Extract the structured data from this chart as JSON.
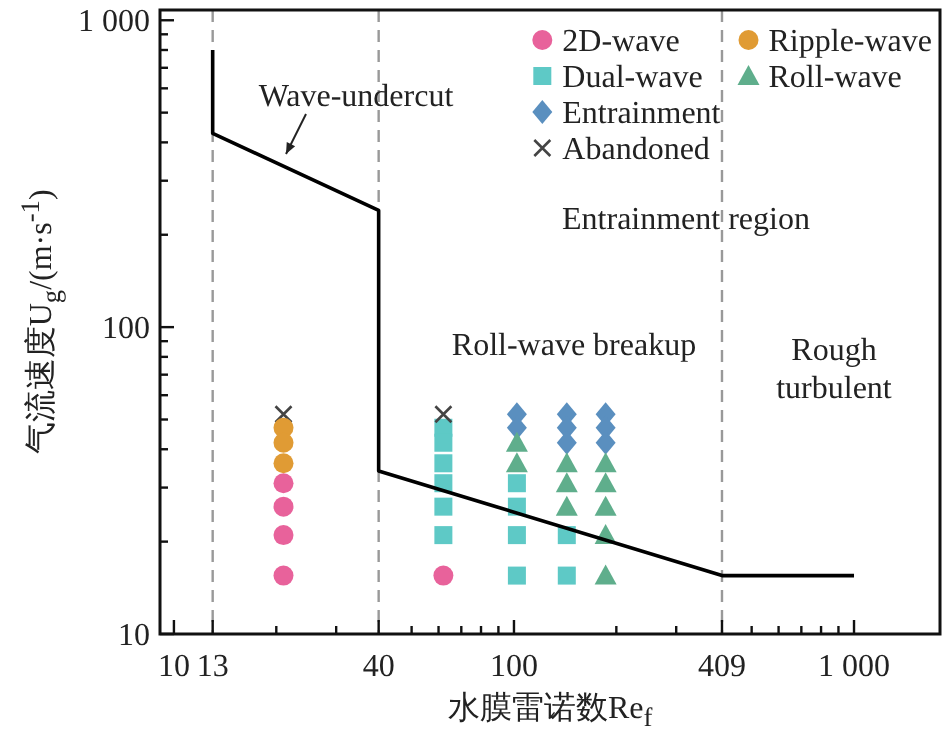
{
  "chart_data": {
    "type": "scatter",
    "xlabel": "水膜雷诺数Re$_{f}$",
    "ylabel": "气流速度U$_{g}$/(m·s$^{-1}$)",
    "log": "xy",
    "xlim": [
      9.1,
      1790
    ],
    "ylim": [
      10,
      1080
    ],
    "xticks": [
      10,
      13,
      {
        "value": 20,
        "label": null
      },
      {
        "value": 30,
        "label": null
      },
      40,
      {
        "value": 50,
        "label": null
      },
      {
        "value": 60,
        "label": null
      },
      {
        "value": 70,
        "label": null
      },
      {
        "value": 80,
        "label": null
      },
      {
        "value": 90,
        "label": null
      },
      100,
      {
        "value": 200,
        "label": null
      },
      {
        "value": 300,
        "label": null
      },
      409,
      {
        "value": 500,
        "label": null
      },
      {
        "value": 600,
        "label": null
      },
      {
        "value": 700,
        "label": null
      },
      {
        "value": 800,
        "label": null
      },
      {
        "value": 900,
        "label": null
      },
      {
        "value": 1000,
        "label": "1 000"
      }
    ],
    "yticks": [
      10,
      {
        "value": 20,
        "label": null
      },
      {
        "value": 30,
        "label": null
      },
      {
        "value": 40,
        "label": null
      },
      {
        "value": 50,
        "label": null
      },
      {
        "value": 60,
        "label": null
      },
      {
        "value": 70,
        "label": null
      },
      {
        "value": 80,
        "label": null
      },
      {
        "value": 90,
        "label": null
      },
      100,
      {
        "value": 200,
        "label": null
      },
      {
        "value": 300,
        "label": null
      },
      {
        "value": 400,
        "label": null
      },
      {
        "value": 500,
        "label": null
      },
      {
        "value": 600,
        "label": null
      },
      {
        "value": 700,
        "label": null
      },
      {
        "value": 800,
        "label": null
      },
      {
        "value": 900,
        "label": null
      },
      {
        "value": 1000,
        "label": "1 000"
      }
    ],
    "legend": "top right",
    "series": [
      {
        "name": "2D-wave",
        "marker": "circle",
        "color": "#e8629b",
        "x": [
          21,
          21,
          21,
          21,
          62
        ],
        "values": [
          31,
          26,
          21,
          15.5,
          15.5
        ]
      },
      {
        "name": "Dual-wave",
        "marker": "square",
        "color": "#5ec9c6",
        "x": [
          62,
          62,
          62,
          62,
          62,
          62,
          102,
          102,
          102,
          102,
          143,
          143
        ],
        "values": [
          47,
          42,
          36,
          31,
          26,
          21,
          31,
          26,
          21,
          15.5,
          21,
          15.5
        ]
      },
      {
        "name": "Entrainment",
        "marker": "diamond",
        "color": "#5a8fbf",
        "x": [
          102,
          102,
          143,
          143,
          143,
          186,
          186,
          186
        ],
        "values": [
          52,
          47,
          52,
          47,
          42,
          52,
          47,
          42
        ]
      },
      {
        "name": "Abandoned",
        "marker": "cross",
        "color": "#444444",
        "x": [
          21,
          62
        ],
        "values": [
          52,
          52
        ]
      },
      {
        "name": "Ripple-wave",
        "marker": "circle",
        "color": "#e09b34",
        "x": [
          21,
          21,
          21
        ],
        "values": [
          47,
          42,
          36
        ]
      },
      {
        "name": "Roll-wave",
        "marker": "triangle",
        "color": "#5fae8c",
        "x": [
          102,
          102,
          143,
          143,
          143,
          186,
          186,
          186,
          186,
          186
        ],
        "values": [
          42,
          36,
          36,
          31,
          26,
          36,
          31,
          26,
          21,
          15.5
        ]
      },
      {
        "type": "line",
        "marker": "none",
        "line_style": "solid",
        "color": "#000000",
        "x": [
          13,
          13,
          40,
          40,
          409,
          1000
        ],
        "values": [
          800,
          428,
          240,
          34,
          15.5,
          15.5
        ]
      }
    ],
    "ref_lines": [
      {
        "axis": "x",
        "value": 13,
        "color": "#999999",
        "line_style": "dashed"
      },
      {
        "axis": "x",
        "value": 40,
        "color": "#999999",
        "line_style": "dashed"
      },
      {
        "axis": "x",
        "value": 409,
        "color": "#999999",
        "line_style": "dashed"
      }
    ],
    "annotations": [
      "Wave-undercut",
      "Entrainment region",
      "Roll-wave breakup",
      "Rough turbulent"
    ]
  }
}
